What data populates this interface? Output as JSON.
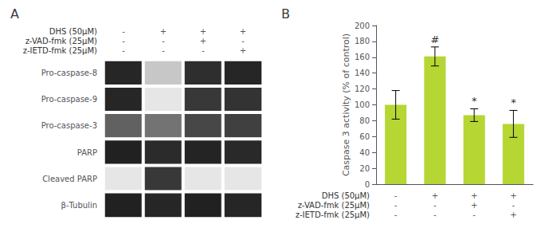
{
  "chart_data": [
    {
      "type": "blot",
      "title": "A",
      "condition_labels": [
        "DHS (50μM)",
        "z-VAD-fmk (25μM)",
        "z-IETD-fmk (25μM)"
      ],
      "conditions": [
        [
          "-",
          "+",
          "+",
          "+"
        ],
        [
          "-",
          "-",
          "+",
          "-"
        ],
        [
          "-",
          "-",
          "-",
          "+"
        ]
      ],
      "bands": [
        {
          "name": "Pro-caspase-8",
          "values": [
            0.15,
            0.78,
            0.18,
            0.15
          ]
        },
        {
          "name": "Pro-caspase-9",
          "values": [
            0.15,
            0.9,
            0.22,
            0.2
          ]
        },
        {
          "name": "Pro-caspase-3",
          "values": [
            0.38,
            0.45,
            0.28,
            0.25
          ]
        },
        {
          "name": "PARP",
          "values": [
            0.13,
            0.17,
            0.14,
            0.16
          ]
        },
        {
          "name": "Cleaved PARP",
          "values": [
            0.9,
            0.22,
            0.9,
            0.9
          ]
        },
        {
          "name": "β-Tubulin",
          "values": [
            0.13,
            0.15,
            0.13,
            0.15
          ]
        }
      ],
      "zlim": [
        0,
        1
      ]
    },
    {
      "type": "bar",
      "title": "B",
      "ylabel": "Caspase 3 activity (% of control)",
      "condition_labels": [
        "DHS (50μM)",
        "z-VAD-fmk (25μM)",
        "z-IETD-fmk (25μM)"
      ],
      "conditions": [
        [
          "-",
          "+",
          "+",
          "+"
        ],
        [
          "-",
          "-",
          "+",
          "-"
        ],
        [
          "-",
          "-",
          "-",
          "+"
        ]
      ],
      "values": [
        100,
        161,
        87,
        76
      ],
      "errors": [
        18,
        12,
        8,
        17
      ],
      "significance": [
        null,
        "#",
        "*",
        "*"
      ],
      "ylim": [
        0,
        200
      ],
      "yticks": [
        0,
        20,
        40,
        60,
        80,
        100,
        120,
        140,
        160,
        180,
        200
      ],
      "grid": false
    }
  ]
}
